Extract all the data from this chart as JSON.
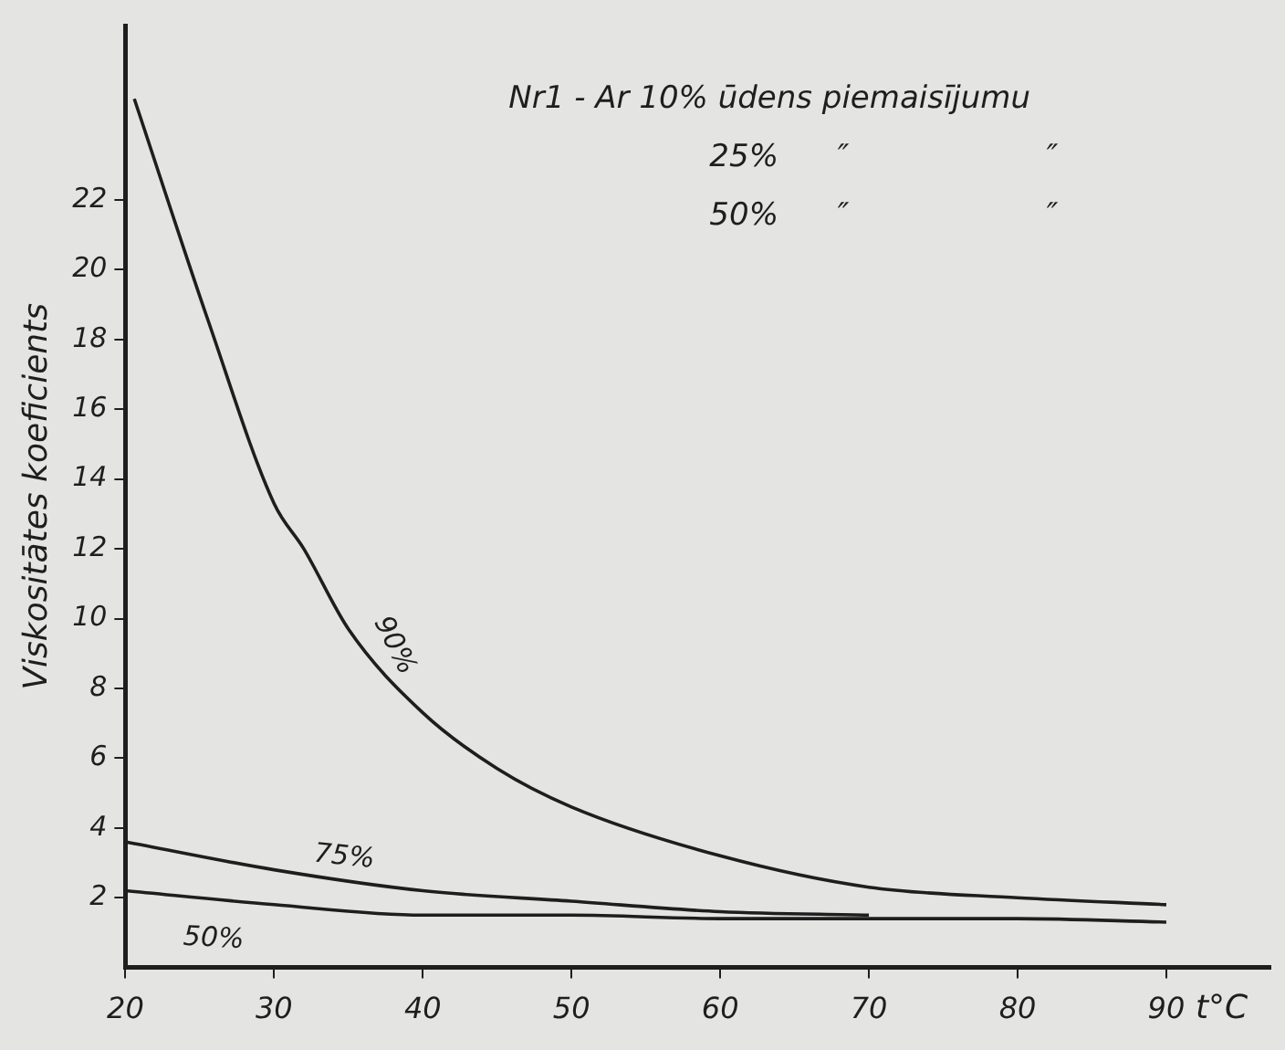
{
  "chart_data": {
    "type": "line",
    "xlabel": "t°C",
    "ylabel": "Viskositātes koeficients",
    "annotations": [
      "Nr1 - Ar 10% ūdens piemaisījumu",
      "25%      ″                    ″",
      "50%      ″                    ″"
    ],
    "series": [
      {
        "name": "90%",
        "color": "#1e1e1e",
        "x": [
          20.6,
          25.6,
          30,
          32,
          35,
          40,
          45,
          50,
          60,
          70,
          80,
          90
        ],
        "values": [
          24.9,
          18.5,
          13.3,
          12,
          9.7,
          7.3,
          5.7,
          4.6,
          3.2,
          2.3,
          2,
          1.8
        ]
      },
      {
        "name": "75%",
        "color": "#1e1e1e",
        "x": [
          20,
          30,
          40,
          50,
          60,
          70
        ],
        "values": [
          3.6,
          2.8,
          2.2,
          1.9,
          1.6,
          1.5
        ]
      },
      {
        "name": "50%",
        "color": "#1e1e1e",
        "x": [
          20,
          30,
          40,
          50,
          60,
          70,
          80,
          90
        ],
        "values": [
          2.2,
          1.8,
          1.5,
          1.5,
          1.4,
          1.4,
          1.4,
          1.3
        ]
      }
    ],
    "xlim": [
      20,
      97
    ],
    "ylim": [
      0,
      27
    ],
    "xticks": [
      20,
      30,
      40,
      50,
      60,
      70,
      80,
      90
    ],
    "yticks": [
      2,
      4,
      6,
      8,
      10,
      12,
      14,
      16,
      18,
      20,
      22
    ],
    "grid": false,
    "legend": false,
    "marker": "none",
    "line_style": "solid"
  }
}
